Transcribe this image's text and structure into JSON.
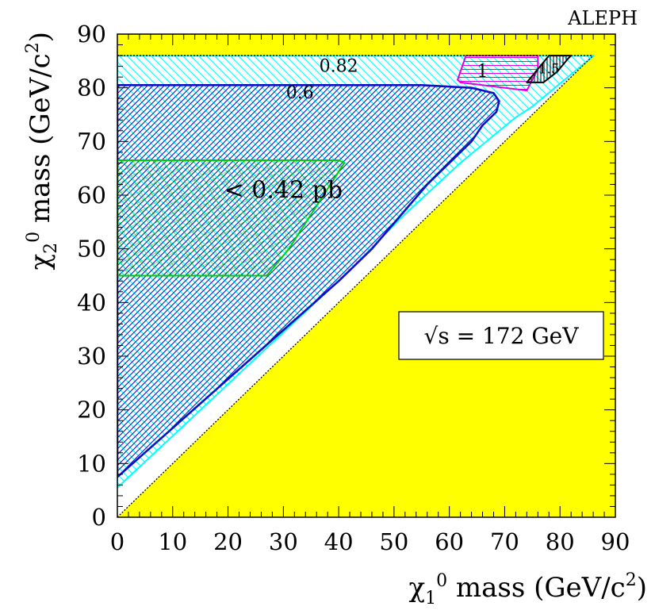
{
  "chart_data": {
    "type": "contour",
    "experiment": "ALEPH",
    "x_axis": {
      "label_parts": [
        "χ",
        "1",
        "0",
        " mass (GeV/c",
        "2",
        ")"
      ],
      "range": [
        0,
        90
      ],
      "ticks": [
        0,
        10,
        20,
        30,
        40,
        50,
        60,
        70,
        80,
        90
      ]
    },
    "y_axis": {
      "label_parts": [
        "χ",
        "2",
        "0",
        " mass (GeV/c",
        "2",
        ")"
      ],
      "range": [
        0,
        90
      ],
      "ticks": [
        0,
        10,
        20,
        30,
        40,
        50,
        60,
        70,
        80,
        90
      ]
    },
    "energy_label": "√s = 172 GeV",
    "excluded_color": "#ffff00",
    "kinematic_limit": [
      [
        0,
        0
      ],
      [
        86,
        86
      ]
    ],
    "contours": [
      {
        "label": "0.82",
        "color": "#00ffff",
        "hatch": "diag-down",
        "points": [
          [
            0,
            6
          ],
          [
            0,
            86
          ],
          [
            86,
            86
          ],
          [
            85.5,
            85.5
          ],
          [
            75,
            76.5
          ],
          [
            72,
            74.5
          ],
          [
            62,
            66
          ],
          [
            51,
            55.5
          ],
          [
            42,
            46
          ],
          [
            0,
            5.5
          ]
        ]
      },
      {
        "label": "0.6",
        "color": "#1010c0",
        "hatch": "diag-up",
        "points": [
          [
            0,
            7.5
          ],
          [
            0,
            80.5
          ],
          [
            52,
            80.5
          ],
          [
            55,
            80.5
          ],
          [
            64,
            80
          ],
          [
            68,
            79
          ],
          [
            69,
            77.5
          ],
          [
            68.5,
            75.5
          ],
          [
            66,
            73
          ],
          [
            64,
            70
          ],
          [
            56,
            62
          ],
          [
            51,
            56
          ],
          [
            46,
            50
          ],
          [
            40,
            44
          ],
          [
            0,
            7.5
          ]
        ]
      },
      {
        "label": "< 0.42 pb",
        "color": "#00cc00",
        "hatch": "cross",
        "points": [
          [
            0,
            45
          ],
          [
            0,
            66.5
          ],
          [
            40,
            66.5
          ],
          [
            41,
            66
          ],
          [
            31,
            50
          ],
          [
            27,
            45
          ],
          [
            0,
            45
          ]
        ]
      },
      {
        "label": "1",
        "color": "#e000e0",
        "hatch": "horizontal",
        "points": [
          [
            61.5,
            81.5
          ],
          [
            63,
            86
          ],
          [
            76,
            86
          ],
          [
            76,
            83.5
          ],
          [
            74,
            79.5
          ],
          [
            62,
            81
          ],
          [
            61.5,
            81.5
          ]
        ]
      },
      {
        "label": "1.5",
        "color": "#000000",
        "hatch": "vertical",
        "points": [
          [
            74,
            81
          ],
          [
            78,
            86
          ],
          [
            82,
            86
          ],
          [
            81.5,
            85.5
          ],
          [
            79.5,
            83
          ],
          [
            77,
            81
          ],
          [
            74,
            81
          ]
        ]
      }
    ],
    "contour_label_positions": {
      "0.82": [
        40,
        83
      ],
      "0.6": [
        33,
        78
      ],
      "< 0.42 pb": [
        30,
        59.5
      ],
      "1": [
        66,
        82
      ],
      "1.5": [
        78,
        82.7
      ]
    }
  }
}
